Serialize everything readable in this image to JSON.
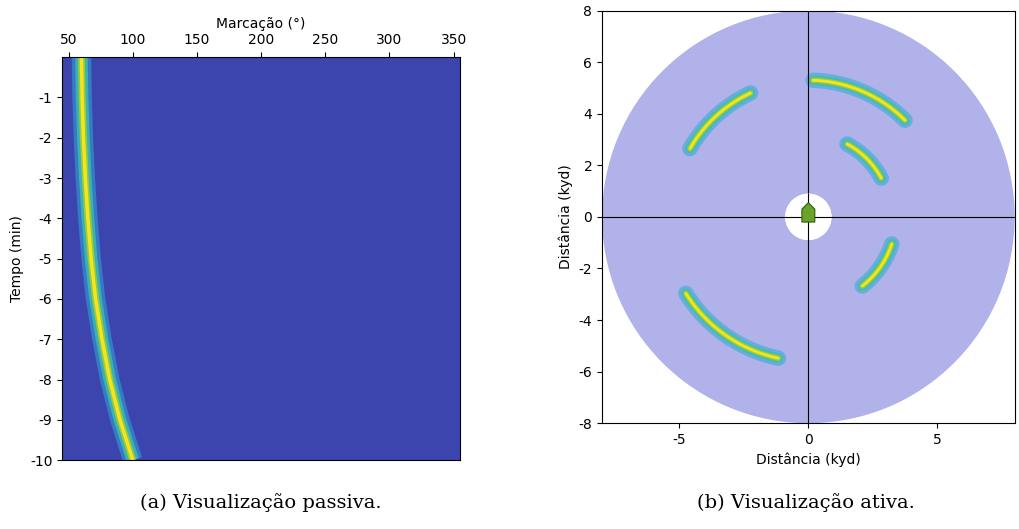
{
  "chart_data": [
    {
      "type": "heatmap",
      "caption": "(a) Visualização passiva.",
      "x_label": "Marcação (°)",
      "y_label": "Tempo (min)",
      "xlim": [
        45,
        355
      ],
      "xticks": [
        50,
        100,
        150,
        200,
        250,
        300,
        350
      ],
      "ylim": [
        -10,
        0
      ],
      "yticks": [
        -10,
        -9,
        -8,
        -7,
        -6,
        -5,
        -4,
        -3,
        -2,
        -1
      ],
      "track": {
        "time": [
          0,
          -1,
          -2,
          -3,
          -4,
          -5,
          -6,
          -7,
          -8,
          -9,
          -10
        ],
        "bearing": [
          60,
          60.5,
          61.5,
          63,
          65,
          67.5,
          71,
          76,
          82,
          90,
          100
        ]
      }
    },
    {
      "type": "scatter",
      "caption": "(b) Visualização ativa.",
      "x_label": "Distância (kyd)",
      "y_label": "Distância (kyd)",
      "xlim": [
        -8,
        8
      ],
      "xticks": [
        -5,
        0,
        5
      ],
      "ylim": [
        -8,
        8
      ],
      "yticks": [
        -8,
        -6,
        -4,
        -2,
        0,
        2,
        4,
        6,
        8
      ],
      "max_range": 8,
      "min_range": 0.9,
      "echoes": [
        {
          "range": 5.3,
          "bearing_start": 300,
          "bearing_end": 335
        },
        {
          "range": 5.3,
          "bearing_start": 2,
          "bearing_end": 45
        },
        {
          "range": 3.2,
          "bearing_start": 28,
          "bearing_end": 62
        },
        {
          "range": 3.4,
          "bearing_start": 108,
          "bearing_end": 142
        },
        {
          "range": 5.6,
          "bearing_start": 192,
          "bearing_end": 238
        }
      ]
    }
  ]
}
